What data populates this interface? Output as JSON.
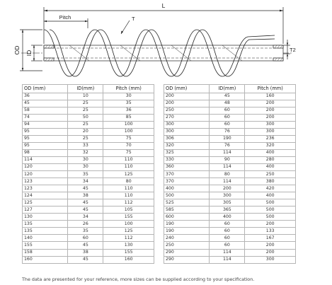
{
  "drawing": {
    "dim_length": "L",
    "dim_pitch": "Pitch",
    "dim_thickness": "T",
    "dim_outer_diameter": "OD",
    "dim_inner_diameter": "ID",
    "dim_wall": "T2"
  },
  "table": {
    "headers": [
      "OD (mm)",
      "ID(mm)",
      "Pitch (mm)"
    ],
    "left_rows": [
      [
        "36",
        "10",
        "30"
      ],
      [
        "45",
        "25",
        "35"
      ],
      [
        "58",
        "25",
        "36"
      ],
      [
        "74",
        "50",
        "85"
      ],
      [
        "94",
        "25",
        "100"
      ],
      [
        "95",
        "20",
        "100"
      ],
      [
        "95",
        "25",
        "75"
      ],
      [
        "95",
        "33",
        "70"
      ],
      [
        "98",
        "32",
        "75"
      ],
      [
        "114",
        "30",
        "110"
      ],
      [
        "120",
        "30",
        "110"
      ],
      [
        "120",
        "35",
        "125"
      ],
      [
        "123",
        "34",
        "80"
      ],
      [
        "123",
        "45",
        "110"
      ],
      [
        "124",
        "38",
        "110"
      ],
      [
        "125",
        "45",
        "112"
      ],
      [
        "127",
        "45",
        "105"
      ],
      [
        "130",
        "34",
        "155"
      ],
      [
        "135",
        "26",
        "100"
      ],
      [
        "135",
        "35",
        "125"
      ],
      [
        "140",
        "60",
        "112"
      ],
      [
        "155",
        "45",
        "130"
      ],
      [
        "158",
        "38",
        "155"
      ],
      [
        "160",
        "45",
        "160"
      ]
    ],
    "right_rows": [
      [
        "200",
        "45",
        "160"
      ],
      [
        "200",
        "48",
        "200"
      ],
      [
        "250",
        "60",
        "200"
      ],
      [
        "270",
        "60",
        "200"
      ],
      [
        "300",
        "60",
        "300"
      ],
      [
        "300",
        "76",
        "300"
      ],
      [
        "306",
        "190",
        "236"
      ],
      [
        "320",
        "76",
        "320"
      ],
      [
        "325",
        "114",
        "400"
      ],
      [
        "330",
        "90",
        "280"
      ],
      [
        "360",
        "114",
        "400"
      ],
      [
        "370",
        "80",
        "250"
      ],
      [
        "370",
        "114",
        "380"
      ],
      [
        "400",
        "200",
        "420"
      ],
      [
        "500",
        "300",
        "400"
      ],
      [
        "525",
        "305",
        "500"
      ],
      [
        "585",
        "365",
        "500"
      ],
      [
        "600",
        "400",
        "500"
      ],
      [
        "190",
        "60",
        "200"
      ],
      [
        "190",
        "60",
        "133"
      ],
      [
        "240",
        "60",
        "167"
      ],
      [
        "250",
        "60",
        "200"
      ],
      [
        "290",
        "114",
        "200"
      ],
      [
        "290",
        "114",
        "300"
      ]
    ]
  },
  "footnote": "The data are presented for your reference, more sizes can be supplied according to your specification."
}
